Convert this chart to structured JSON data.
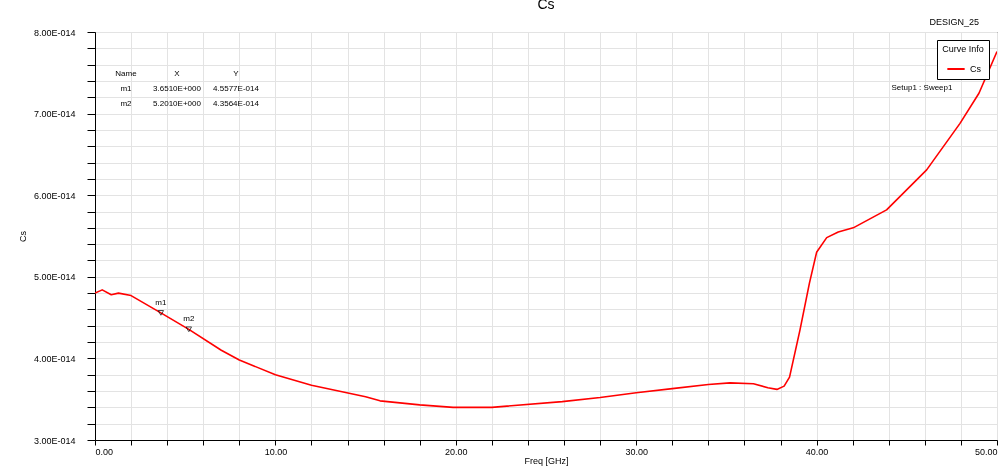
{
  "chart_data": {
    "type": "line",
    "title": "Cs",
    "xlabel": "Freq [GHz]",
    "ylabel": "Cs",
    "legend_title": "Curve Info",
    "legend": "top right",
    "grid": true,
    "x": [
      0,
      0.4,
      0.9,
      1.3,
      2,
      3.651,
      5.201,
      7,
      8,
      10,
      12,
      15,
      15.8,
      18,
      19.85,
      22,
      25.9,
      28,
      30,
      32,
      34,
      35.2,
      36.5,
      37.3,
      37.8,
      38.2,
      38.5,
      39.08,
      39.6,
      40,
      40.56,
      41.2,
      42.03,
      43.88,
      46.1,
      47.95,
      49,
      50
    ],
    "series": [
      {
        "name": "Cs",
        "color": "#ff0000",
        "values": [
          4.8e-14,
          4.84e-14,
          4.78e-14,
          4.8e-14,
          4.77e-14,
          4.5577e-14,
          4.3564e-14,
          4.1e-14,
          3.98e-14,
          3.8e-14,
          3.67e-14,
          3.53e-14,
          3.48e-14,
          3.43e-14,
          3.4e-14,
          3.4e-14,
          3.47e-14,
          3.52e-14,
          3.58e-14,
          3.63e-14,
          3.68e-14,
          3.7e-14,
          3.69e-14,
          3.64e-14,
          3.62e-14,
          3.66e-14,
          3.77e-14,
          4.35e-14,
          4.92e-14,
          5.3e-14,
          5.48e-14,
          5.55e-14,
          5.6e-14,
          5.82e-14,
          6.31e-14,
          6.88e-14,
          7.25e-14,
          7.76e-14
        ]
      }
    ],
    "xlim": [
      0,
      50
    ],
    "xticks": [
      {
        "value": 0,
        "label": "0.00"
      },
      {
        "value": 2,
        "label": null
      },
      {
        "value": 4,
        "label": null
      },
      {
        "value": 6,
        "label": null
      },
      {
        "value": 8,
        "label": null
      },
      {
        "value": 10,
        "label": "10.00"
      },
      {
        "value": 12,
        "label": null
      },
      {
        "value": 14,
        "label": null
      },
      {
        "value": 16,
        "label": null
      },
      {
        "value": 18,
        "label": null
      },
      {
        "value": 20,
        "label": "20.00"
      },
      {
        "value": 22,
        "label": null
      },
      {
        "value": 24,
        "label": null
      },
      {
        "value": 26,
        "label": null
      },
      {
        "value": 28,
        "label": null
      },
      {
        "value": 30,
        "label": "30.00"
      },
      {
        "value": 32,
        "label": null
      },
      {
        "value": 34,
        "label": null
      },
      {
        "value": 36,
        "label": null
      },
      {
        "value": 38,
        "label": null
      },
      {
        "value": 40,
        "label": "40.00"
      },
      {
        "value": 42,
        "label": null
      },
      {
        "value": 44,
        "label": null
      },
      {
        "value": 46,
        "label": null
      },
      {
        "value": 48,
        "label": null
      },
      {
        "value": 50,
        "label": "50.00"
      }
    ],
    "ylim": [
      3e-14,
      8e-14
    ],
    "yticks": [
      {
        "value": 3e-14,
        "label": "3.00E-014"
      },
      {
        "value": 3.2e-14,
        "label": null
      },
      {
        "value": 3.4e-14,
        "label": null
      },
      {
        "value": 3.6e-14,
        "label": null
      },
      {
        "value": 3.8e-14,
        "label": null
      },
      {
        "value": 4e-14,
        "label": "4.00E-014"
      },
      {
        "value": 4.2e-14,
        "label": null
      },
      {
        "value": 4.4e-14,
        "label": null
      },
      {
        "value": 4.6e-14,
        "label": null
      },
      {
        "value": 4.8e-14,
        "label": null
      },
      {
        "value": 5e-14,
        "label": "5.00E-014"
      },
      {
        "value": 5.2e-14,
        "label": null
      },
      {
        "value": 5.4e-14,
        "label": null
      },
      {
        "value": 5.6e-14,
        "label": null
      },
      {
        "value": 5.8e-14,
        "label": null
      },
      {
        "value": 6e-14,
        "label": "6.00E-014"
      },
      {
        "value": 6.2e-14,
        "label": null
      },
      {
        "value": 6.4e-14,
        "label": null
      },
      {
        "value": 6.6e-14,
        "label": null
      },
      {
        "value": 6.8e-14,
        "label": null
      },
      {
        "value": 7e-14,
        "label": "7.00E-014"
      },
      {
        "value": 7.2e-14,
        "label": null
      },
      {
        "value": 7.4e-14,
        "label": null
      },
      {
        "value": 7.6e-14,
        "label": null
      },
      {
        "value": 7.8e-14,
        "label": null
      },
      {
        "value": 8e-14,
        "label": "8.00E-014"
      }
    ],
    "annotations": [
      "DESIGN_25",
      "Name",
      "X",
      "Y",
      "m1",
      "3.6510E+000",
      "4.5577E-014",
      "m2",
      "5.2010E+000",
      "4.3564E-014",
      "Setup1 : Sweep1",
      {
        "text": "m1",
        "x": 3.651,
        "y": 4.5577e-14
      },
      {
        "text": "m2",
        "x": 5.201,
        "y": 4.3564e-14
      }
    ]
  }
}
